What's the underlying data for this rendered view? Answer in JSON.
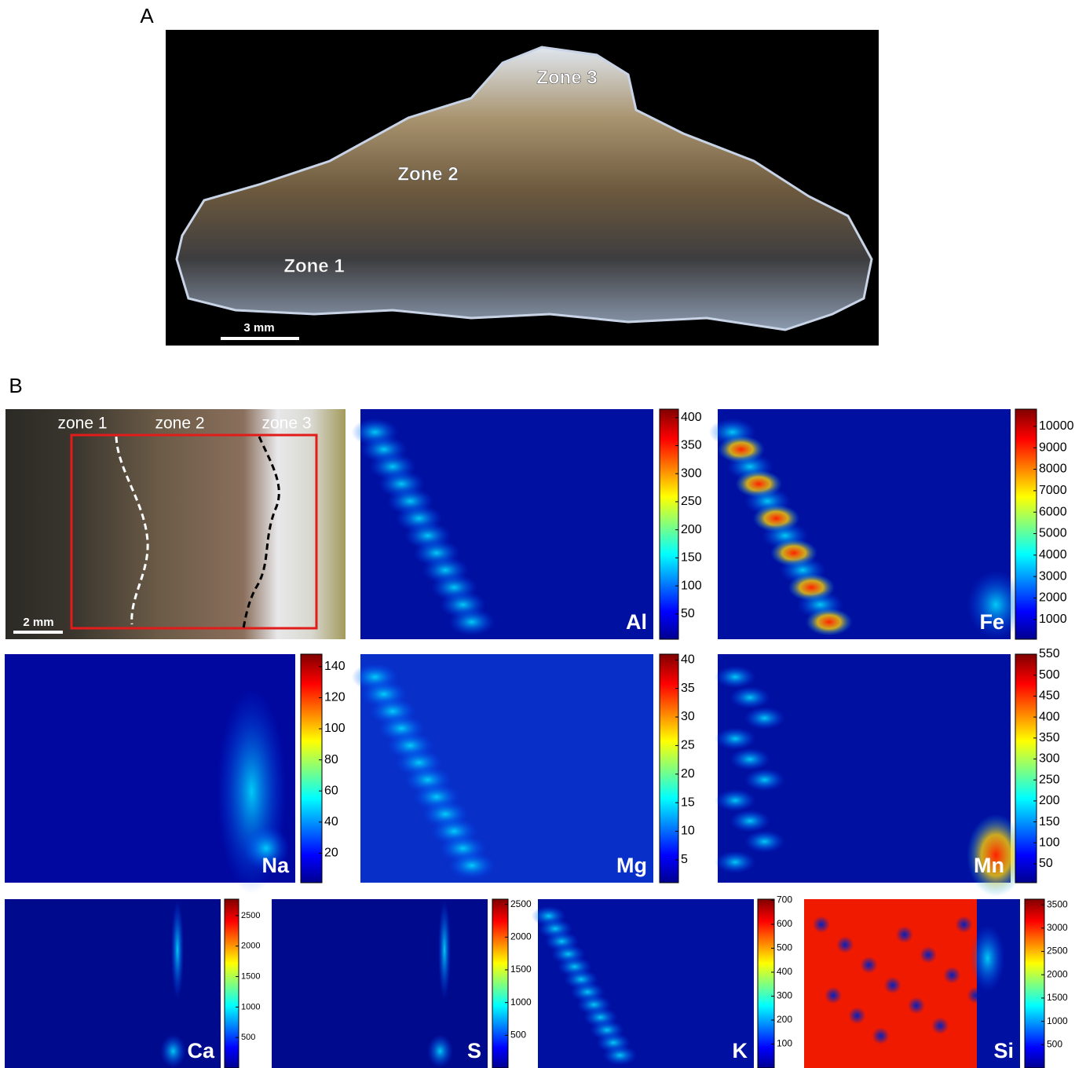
{
  "panel_a": {
    "label": "A",
    "zones": [
      "Zone 3",
      "Zone 2",
      "Zone 1"
    ],
    "scale_bar": "3 mm"
  },
  "panel_b": {
    "label": "B",
    "photo": {
      "zones": [
        "zone 1",
        "zone 2",
        "zone 3"
      ],
      "scale_bar": "2 mm"
    },
    "maps": [
      {
        "element": "Al",
        "clim": [
          5,
          415
        ],
        "ticks": [
          50,
          100,
          150,
          200,
          250,
          300,
          350,
          400
        ]
      },
      {
        "element": "Fe",
        "clim": [
          80,
          10800
        ],
        "ticks": [
          1000,
          2000,
          3000,
          4000,
          5000,
          6000,
          7000,
          8000,
          9000,
          10000
        ]
      },
      {
        "element": "Na",
        "clim": [
          1,
          148
        ],
        "ticks": [
          20,
          40,
          60,
          80,
          100,
          120,
          140
        ]
      },
      {
        "element": "Mg",
        "clim": [
          1,
          41
        ],
        "ticks": [
          5,
          10,
          15,
          20,
          25,
          30,
          35,
          40
        ]
      },
      {
        "element": "Mn",
        "clim": [
          5,
          550
        ],
        "ticks": [
          50,
          100,
          150,
          200,
          250,
          300,
          350,
          400,
          450,
          500,
          550
        ]
      },
      {
        "element": "Ca",
        "clim": [
          0,
          2770
        ],
        "ticks": [
          500,
          1000,
          1500,
          2000,
          2500
        ]
      },
      {
        "element": "S",
        "clim": [
          0,
          2580
        ],
        "ticks": [
          500,
          1000,
          1500,
          2000,
          2500
        ]
      },
      {
        "element": "K",
        "clim": [
          0,
          705
        ],
        "ticks": [
          100,
          200,
          300,
          400,
          500,
          600,
          700
        ]
      },
      {
        "element": "Si",
        "clim": [
          0,
          3620
        ],
        "ticks": [
          500,
          1000,
          1500,
          2000,
          2500,
          3000,
          3500
        ]
      }
    ]
  }
}
